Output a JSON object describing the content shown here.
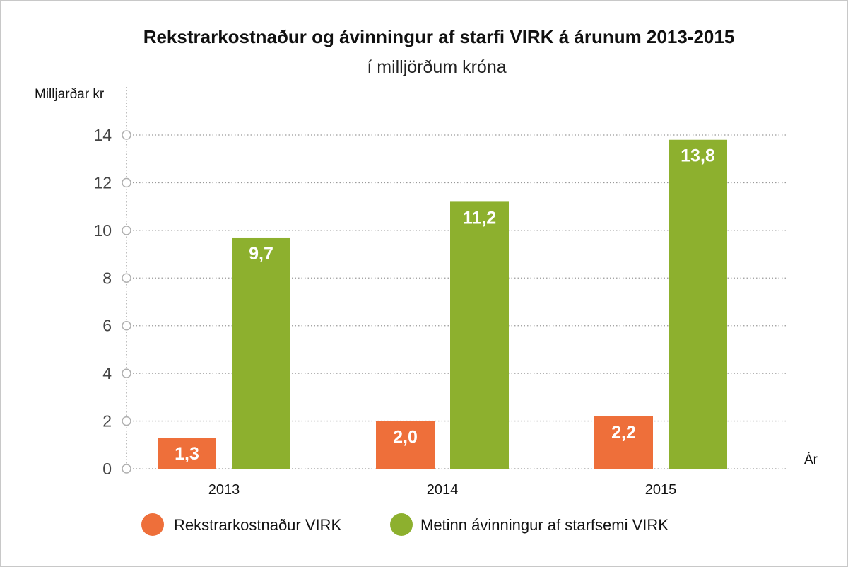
{
  "chart_data": {
    "type": "bar",
    "title": "Rekstrarkostnaður og ávinningur af starfi VIRK á árunum 2013-2015",
    "subtitle": "í milljörðum króna",
    "ylabel": "Milljarðar kr",
    "xlabel": "Ár",
    "categories": [
      "2013",
      "2014",
      "2015"
    ],
    "ylim": [
      0,
      14
    ],
    "yticks": [
      0,
      2,
      4,
      6,
      8,
      10,
      12,
      14
    ],
    "grid": true,
    "legend_position": "bottom",
    "series": [
      {
        "name": "Rekstrarkostnaður VIRK",
        "color": "#ee6f3a",
        "values": [
          1.3,
          2.0,
          2.2
        ],
        "labels": [
          "1,3",
          "2,0",
          "2,2"
        ]
      },
      {
        "name": "Metinn ávinningur af starfsemi VIRK",
        "color": "#8db02e",
        "values": [
          9.7,
          11.2,
          13.8
        ],
        "labels": [
          "9,7",
          "11,2",
          "13,8"
        ]
      }
    ]
  }
}
